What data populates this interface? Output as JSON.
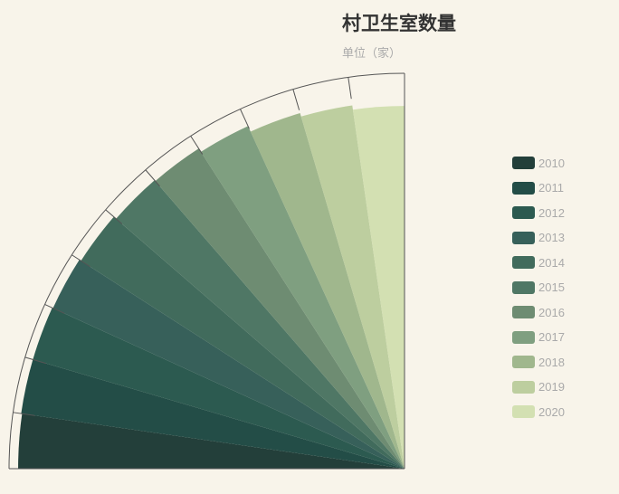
{
  "chart_data": {
    "type": "polar-bar",
    "title": "村卫生室数量",
    "subtitle": "单位（家）",
    "legend_position": "right",
    "radius_max": 650000,
    "series": [
      {
        "name": "2010",
        "value": 648424,
        "color": "#233f3a"
      },
      {
        "name": "2011",
        "value": 662894,
        "color": "#234d47"
      },
      {
        "name": "2012",
        "value": 653419,
        "color": "#2c5a50"
      },
      {
        "name": "2013",
        "value": 648619,
        "color": "#37605a"
      },
      {
        "name": "2014",
        "value": 645470,
        "color": "#416b5c"
      },
      {
        "name": "2015",
        "value": 640536,
        "color": "#4f7765"
      },
      {
        "name": "2016",
        "value": 638763,
        "color": "#6e8c72"
      },
      {
        "name": "2017",
        "value": 632057,
        "color": "#7f9f80"
      },
      {
        "name": "2018",
        "value": 622001,
        "color": "#a0b78d"
      },
      {
        "name": "2019",
        "value": 616094,
        "color": "#bdce9f"
      },
      {
        "name": "2020",
        "value": 608828,
        "color": "#d3e0b2"
      }
    ]
  }
}
